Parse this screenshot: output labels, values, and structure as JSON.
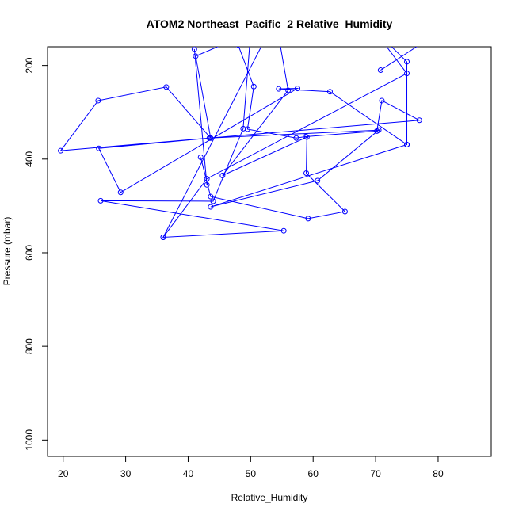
{
  "chart_data": {
    "type": "line",
    "title": "ATOM2 Northeast_Pacific_2 Relative_Humidity",
    "xlabel": "Relative_Humidity",
    "ylabel": "Pressure (mbar)",
    "xlim": [
      17.5,
      88.5
    ],
    "ylim": [
      1035,
      160
    ],
    "y_axis_inverted": true,
    "xticks": [
      20,
      30,
      40,
      50,
      60,
      70,
      80
    ],
    "yticks": [
      200,
      400,
      600,
      800,
      1000
    ],
    "grid": false,
    "legend": "none",
    "series_color": "#0000ff",
    "markers": "open-circle",
    "series": [
      {
        "points": [
          [
            48,
            156
          ],
          [
            50.5,
            245
          ],
          [
            49.5,
            336
          ],
          [
            57.3,
            355
          ],
          [
            58.8,
            352
          ],
          [
            70.2,
            340
          ],
          [
            71,
            275
          ],
          [
            77,
            317
          ],
          [
            19.6,
            382
          ],
          [
            25.6,
            275
          ],
          [
            36.5,
            246
          ],
          [
            43.6,
            355
          ],
          [
            41.2,
            180
          ],
          [
            50,
            130
          ],
          [
            48.8,
            335
          ],
          [
            44,
            490
          ],
          [
            26,
            489
          ],
          [
            55.3,
            553
          ],
          [
            36,
            567
          ],
          [
            43,
            442
          ],
          [
            75,
            217
          ],
          [
            69.5,
            120
          ],
          [
            75,
            192
          ],
          [
            75,
            369
          ],
          [
            43.6,
            502
          ],
          [
            60.7,
            446
          ],
          [
            70.5,
            338
          ],
          [
            43.4,
            355
          ],
          [
            25.7,
            377
          ],
          [
            29.2,
            471
          ],
          [
            57.5,
            249
          ],
          [
            54.5,
            250
          ],
          [
            62.7,
            256
          ],
          [
            75,
            369
          ]
        ]
      },
      {
        "points": [
          [
            42,
            396
          ],
          [
            43.6,
            480
          ],
          [
            59.2,
            527
          ],
          [
            65.1,
            512
          ],
          [
            58.9,
            430
          ],
          [
            59,
            353
          ],
          [
            45.5,
            435
          ],
          [
            56,
            253
          ],
          [
            54,
            100
          ],
          [
            36,
            567
          ]
        ]
      },
      {
        "points": [
          [
            41,
            165
          ],
          [
            43,
            455
          ]
        ]
      },
      {
        "points": [
          [
            70.8,
            210
          ],
          [
            80,
            130
          ]
        ]
      }
    ]
  }
}
